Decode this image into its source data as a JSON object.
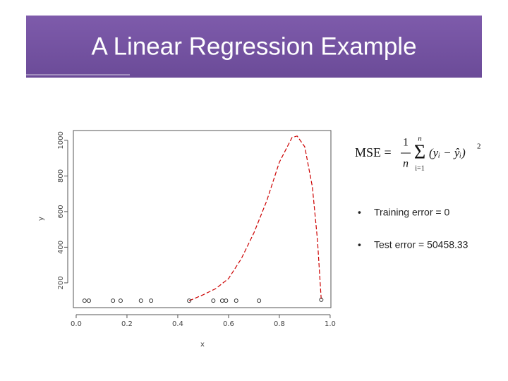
{
  "title": "A Linear Regression Example",
  "formula": {
    "lhs": "MSE =",
    "numerator": "1",
    "denominator": "n",
    "sigma": "Σ",
    "sum_top": "n",
    "sum_bottom": "i=1",
    "body": "(yᵢ − ŷᵢ)",
    "power": "2"
  },
  "bullets": [
    "Training error = 0",
    "Test error = 50458.33"
  ],
  "chart_data": {
    "type": "scatter",
    "x_label": "x",
    "y_label": "y",
    "x": [
      0.033,
      0.05,
      0.145,
      0.175,
      0.255,
      0.295,
      0.445,
      0.54,
      0.575,
      0.59,
      0.63,
      0.72,
      0.965
    ],
    "values": [
      100,
      100,
      100,
      100,
      100,
      100,
      100,
      100,
      100,
      100,
      100,
      100,
      105
    ],
    "point_color": "#333333",
    "curve": {
      "color": "#cc0000",
      "x": [
        0.445,
        0.5,
        0.55,
        0.6,
        0.65,
        0.7,
        0.75,
        0.8,
        0.85,
        0.87,
        0.9,
        0.93,
        0.95,
        0.965
      ],
      "values": [
        100,
        133,
        168,
        224,
        335,
        481,
        659,
        877,
        1016,
        1024,
        964,
        739,
        442,
        105
      ]
    },
    "xlim": [
      -0.011,
      1.003
    ],
    "ylim": [
      61,
      1055
    ],
    "xticks": [
      {
        "value": 0,
        "label": "0.0"
      },
      {
        "value": 0.2,
        "label": "0.2"
      },
      {
        "value": 0.4,
        "label": "0.4"
      },
      {
        "value": 0.6,
        "label": "0.6"
      },
      {
        "value": 0.8,
        "label": "0.8"
      },
      {
        "value": 1,
        "label": "1.0"
      }
    ],
    "yticks": [
      200,
      400,
      600,
      800,
      1000
    ]
  }
}
